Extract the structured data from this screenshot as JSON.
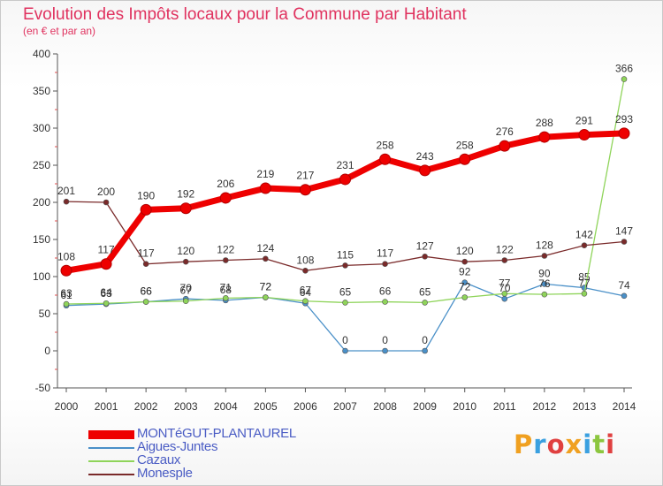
{
  "page": {
    "title": "Evolution des Impôts locaux pour la Commune par Habitant",
    "subtitle": "(en € et par an)"
  },
  "logo": {
    "text": "Proxiti"
  },
  "chart_data": {
    "type": "line",
    "title": "Evolution des Impôts locaux pour la Commune par Habitant",
    "subtitle": "(en € et par an)",
    "xlabel": "",
    "ylabel": "",
    "ylim": [
      -50,
      400
    ],
    "yticks": [
      -50,
      0,
      50,
      100,
      150,
      200,
      250,
      300,
      350,
      400
    ],
    "grid": false,
    "legend_position": "bottom-left",
    "x": [
      "2000",
      "2001",
      "2002",
      "2003",
      "2004",
      "2005",
      "2006",
      "2007",
      "2008",
      "2009",
      "2010",
      "2011",
      "2012",
      "2013",
      "2014"
    ],
    "series": [
      {
        "name": "Aigues-Juntes",
        "color": "#4a90c8",
        "values": [
          61,
          63,
          66,
          70,
          68,
          72,
          64,
          0,
          0,
          0,
          92,
          70,
          90,
          85,
          74
        ],
        "labels": [
          "61",
          "63",
          "66",
          "70",
          "68",
          "72",
          "64",
          "0",
          "0",
          "0",
          "92",
          "70",
          "90",
          "85",
          "74"
        ]
      },
      {
        "name": "Cazaux",
        "color": "#8fd45a",
        "values": [
          63,
          64,
          66,
          67,
          71,
          72,
          67,
          65,
          66,
          65,
          72,
          77,
          76,
          77,
          366
        ],
        "labels": [
          "63",
          "64",
          "66",
          "67",
          "71",
          "72",
          "67",
          "65",
          "66",
          "65",
          "72",
          "77",
          "76",
          "77",
          "366"
        ]
      },
      {
        "name": "Monesple",
        "color": "#7a2a2a",
        "values": [
          201,
          200,
          117,
          120,
          122,
          124,
          108,
          115,
          117,
          127,
          120,
          122,
          128,
          142,
          147
        ],
        "labels": [
          "201",
          "200",
          "117",
          "120",
          "122",
          "124",
          "108",
          "115",
          "117",
          "127",
          "120",
          "122",
          "128",
          "142",
          "147"
        ]
      },
      {
        "name": "MONTéGUT-PLANTAUREL",
        "color": "#ee0000",
        "values": [
          108,
          117,
          190,
          192,
          206,
          219,
          217,
          231,
          258,
          243,
          258,
          276,
          288,
          291,
          293
        ],
        "labels": [
          "108",
          "117",
          "190",
          "192",
          "206",
          "219",
          "217",
          "231",
          "258",
          "243",
          "258",
          "276",
          "288",
          "291",
          "293"
        ]
      }
    ]
  }
}
